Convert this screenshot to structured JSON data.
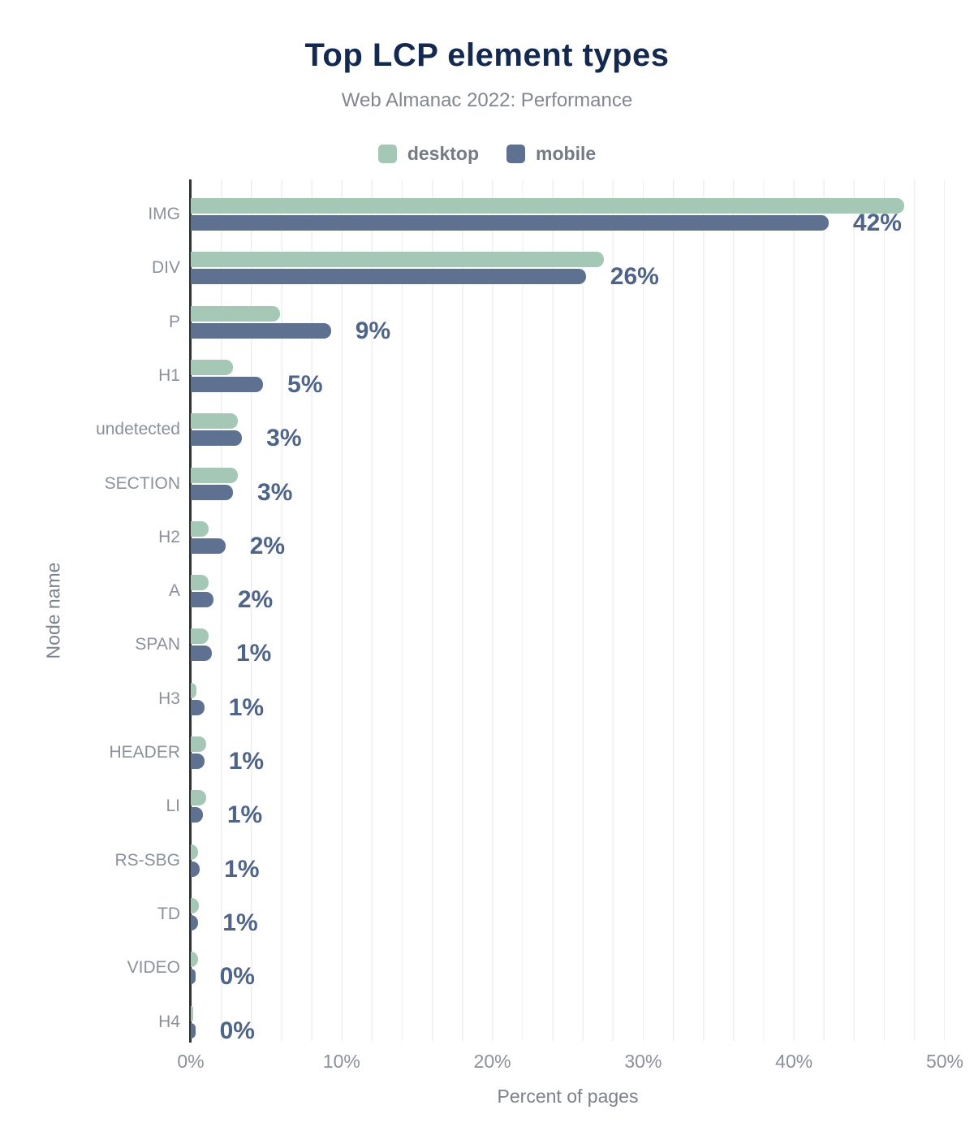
{
  "chart_data": {
    "type": "bar",
    "orientation": "horizontal",
    "title": "Top LCP element types",
    "subtitle": "Web Almanac 2022: Performance",
    "xlabel": "Percent of pages",
    "ylabel": "Node name",
    "xlim": [
      0,
      50
    ],
    "x_tick_labels": [
      "0%",
      "10%",
      "20%",
      "30%",
      "40%",
      "50%"
    ],
    "grid": "light vertical gridlines every 2%",
    "legend_position": "top-center",
    "categories": [
      "IMG",
      "DIV",
      "P",
      "H1",
      "undetected",
      "SECTION",
      "H2",
      "A",
      "SPAN",
      "H3",
      "HEADER",
      "LI",
      "RS-SBG",
      "TD",
      "VIDEO",
      "H4"
    ],
    "series": [
      {
        "name": "desktop",
        "color": "#a4c8b5",
        "values": [
          47.3,
          27.4,
          5.9,
          2.8,
          3.1,
          3.1,
          1.2,
          1.2,
          1.2,
          0.4,
          1.0,
          1.0,
          0.5,
          0.55,
          0.5,
          0.15
        ]
      },
      {
        "name": "mobile",
        "color": "#5e7190",
        "values": [
          42.3,
          26.2,
          9.3,
          4.8,
          3.4,
          2.8,
          2.3,
          1.5,
          1.4,
          0.9,
          0.9,
          0.8,
          0.6,
          0.5,
          0.3,
          0.3
        ]
      }
    ],
    "value_labels": {
      "labeled_series": "mobile",
      "texts": [
        "42%",
        "26%",
        "9%",
        "5%",
        "3%",
        "3%",
        "2%",
        "2%",
        "1%",
        "1%",
        "1%",
        "1%",
        "1%",
        "1%",
        "0%",
        "0%"
      ]
    }
  },
  "colors": {
    "title": "#14294e",
    "subtitle": "#82878f",
    "axis_text": "#8b919b",
    "value_label": "#4e6489",
    "legend_text": "#757b85",
    "gridline": "#edeff2",
    "axis_line": "#303436",
    "background": "#ffffff",
    "desktop_bar": "#a4c8b5",
    "mobile_bar": "#5e7190"
  }
}
